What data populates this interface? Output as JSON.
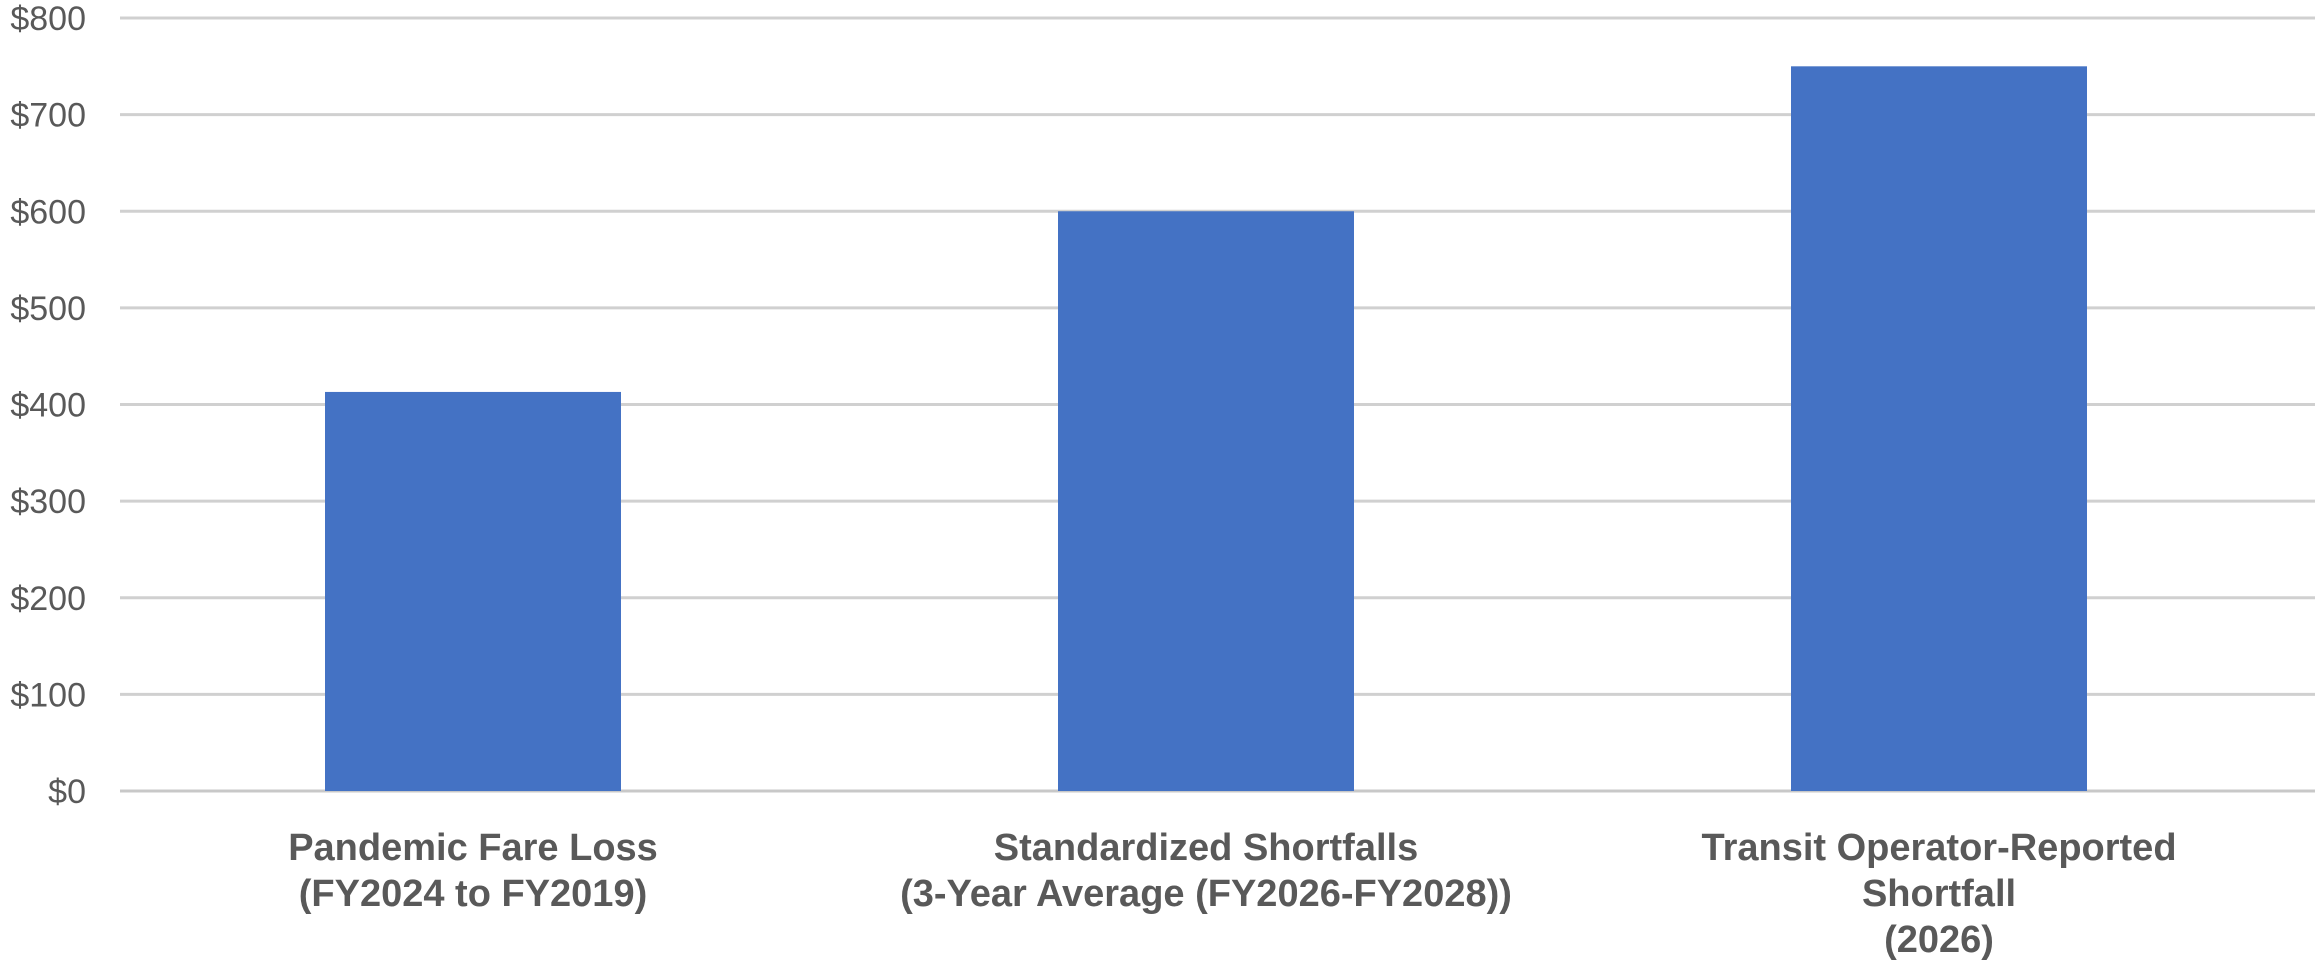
{
  "chart_data": {
    "type": "bar",
    "title": "",
    "xlabel": "",
    "ylabel": "",
    "categories": [
      [
        "Pandemic Fare Loss",
        "(FY2024 to FY2019)"
      ],
      [
        "Standardized Shortfalls",
        "(3-Year Average (FY2026-FY2028))"
      ],
      [
        "Transit Operator-Reported",
        "Shortfall",
        "(2026)"
      ]
    ],
    "values": [
      413,
      600,
      750
    ],
    "ylim": [
      0,
      800
    ],
    "yticks": [
      0,
      100,
      200,
      300,
      400,
      500,
      600,
      700,
      800
    ],
    "ytick_labels": [
      "$0",
      "$100",
      "$200",
      "$300",
      "$400",
      "$500",
      "$600",
      "$700",
      "$800"
    ],
    "grid": true,
    "legend": "none",
    "colors": {
      "bar": "#4472C4",
      "gridline": "#D0D0D0",
      "text": "#595959"
    }
  }
}
